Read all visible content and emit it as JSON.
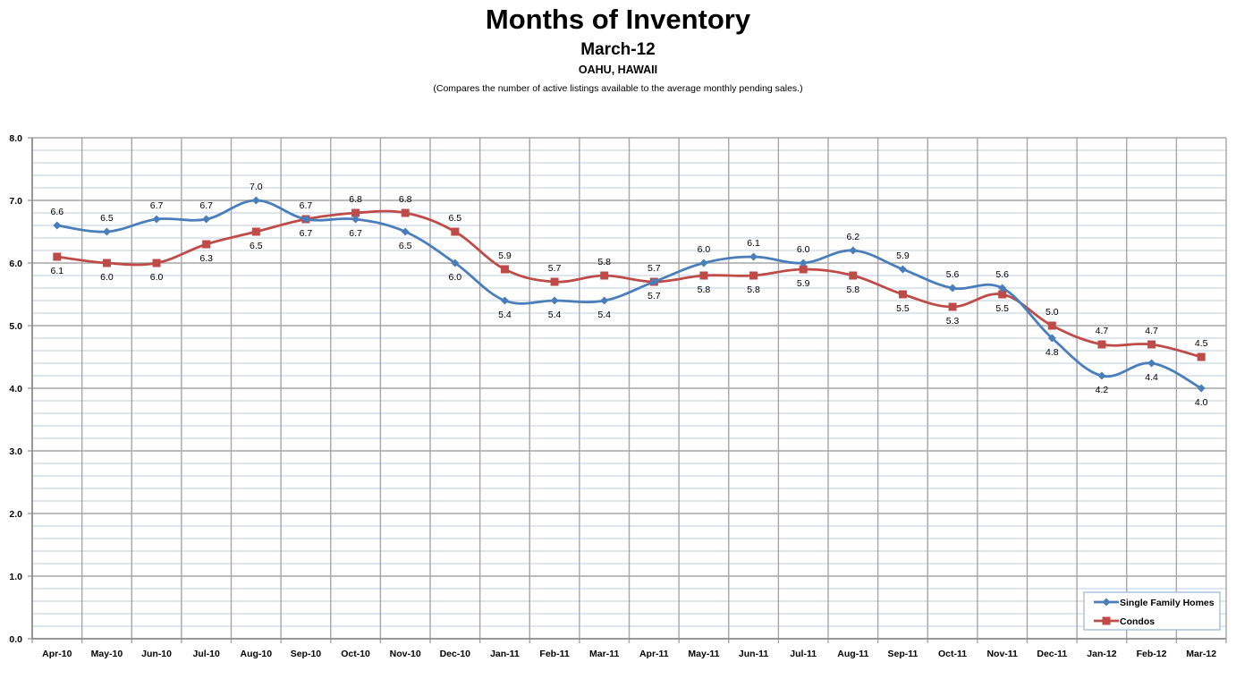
{
  "chart_data": {
    "type": "line",
    "title": "Months of Inventory",
    "subtitle": "March-12",
    "location": "OAHU, HAWAII",
    "note": "(Compares the number of active listings available to the average monthly pending sales.)",
    "xlabel": "",
    "ylabel": "",
    "ylim": [
      0,
      8
    ],
    "yticks": [
      "0.0",
      "1.0",
      "2.0",
      "3.0",
      "4.0",
      "5.0",
      "6.0",
      "7.0",
      "8.0"
    ],
    "grid": true,
    "legend_position": "bottom-right",
    "categories": [
      "Apr-10",
      "May-10",
      "Jun-10",
      "Jul-10",
      "Aug-10",
      "Sep-10",
      "Oct-10",
      "Nov-10",
      "Dec-10",
      "Jan-11",
      "Feb-11",
      "Mar-11",
      "Apr-11",
      "May-11",
      "Jun-11",
      "Jul-11",
      "Aug-11",
      "Sep-11",
      "Oct-11",
      "Nov-11",
      "Dec-11",
      "Jan-12",
      "Feb-12",
      "Mar-12"
    ],
    "series": [
      {
        "name": "Single Family Homes",
        "color": "#4A7EBB",
        "marker": "diamond",
        "values": [
          6.6,
          6.5,
          6.7,
          6.7,
          7.0,
          6.7,
          6.7,
          6.5,
          6.0,
          5.4,
          5.4,
          5.4,
          5.7,
          6.0,
          6.1,
          6.0,
          6.2,
          5.9,
          5.6,
          5.6,
          4.8,
          4.2,
          4.4,
          4.0
        ],
        "label_pos": [
          "above",
          "above",
          "above",
          "above",
          "above",
          "below",
          "below",
          "below",
          "below",
          "below",
          "below",
          "below",
          "above",
          "above",
          "above",
          "above",
          "above",
          "above",
          "above",
          "above",
          "below",
          "below",
          "below",
          "below"
        ]
      },
      {
        "name": "Condos",
        "color": "#BE4B48",
        "marker": "square",
        "values": [
          6.1,
          6.0,
          6.0,
          6.3,
          6.5,
          6.7,
          6.8,
          6.8,
          6.5,
          5.9,
          5.7,
          5.8,
          5.7,
          5.8,
          5.8,
          5.9,
          5.8,
          5.5,
          5.3,
          5.5,
          5.0,
          4.7,
          4.7,
          4.5
        ],
        "label_pos": [
          "below",
          "below",
          "below",
          "below",
          "below",
          "above",
          "above",
          "above",
          "above",
          "above",
          "above",
          "above",
          "below",
          "below",
          "below",
          "below",
          "below",
          "below",
          "below",
          "below",
          "above",
          "above",
          "above",
          "above"
        ]
      }
    ]
  }
}
